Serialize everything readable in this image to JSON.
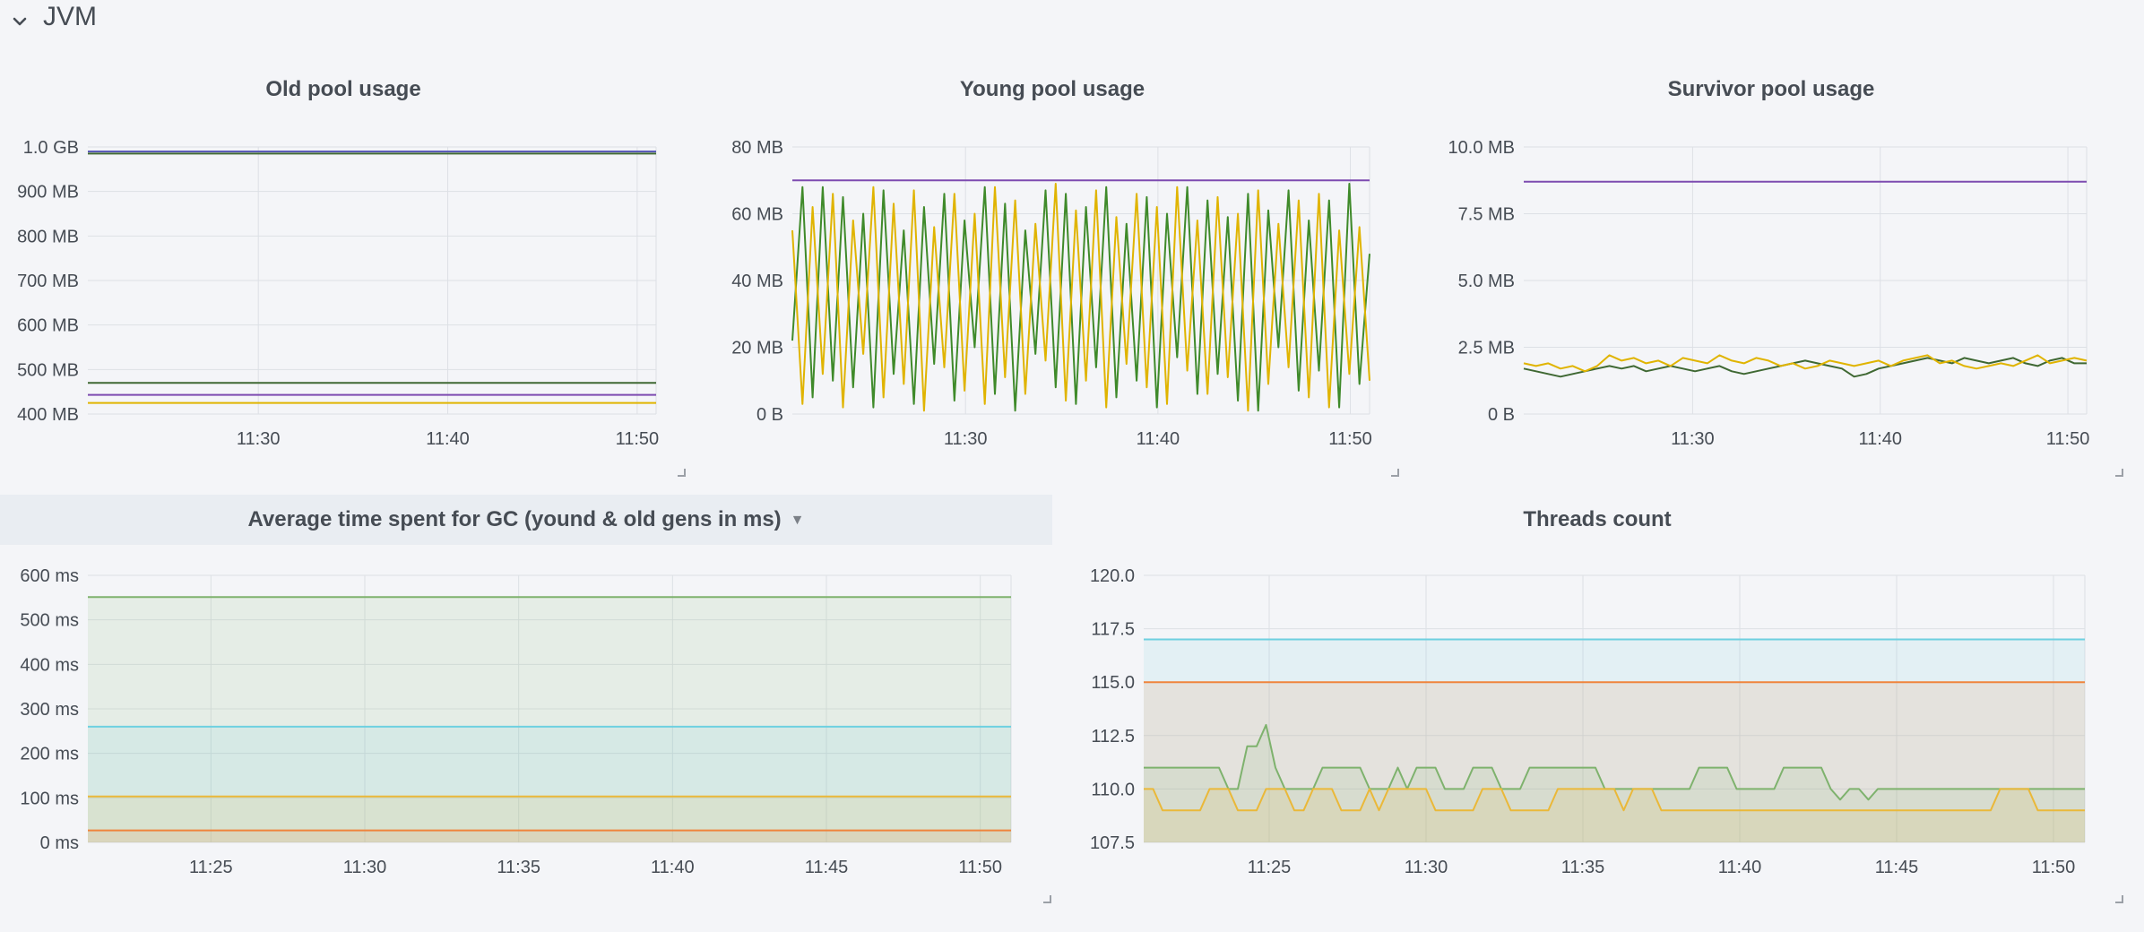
{
  "row": {
    "title": "JVM"
  },
  "panels": [
    {
      "id": "old",
      "title": "Old pool usage",
      "chart_data": {
        "type": "line",
        "title": "Old pool usage",
        "x_ticks": [
          "11:30",
          "11:40",
          "11:50"
        ],
        "y_ticks": [
          "1.0 GB",
          "900 MB",
          "800 MB",
          "700 MB",
          "600 MB",
          "500 MB",
          "400 MB"
        ],
        "ylim": [
          400,
          1000
        ],
        "y_unit": "MB",
        "x_range": [
          "11:21",
          "11:51"
        ],
        "grid": true,
        "series": [
          {
            "color": "#5b5bb8",
            "values": [
              990,
              990
            ]
          },
          {
            "color": "#3f6833",
            "values": [
              985,
              985
            ]
          },
          {
            "color": "#3f6833",
            "values": [
              470,
              470
            ]
          },
          {
            "color": "#7d4bb0",
            "values": [
              443,
              443
            ]
          },
          {
            "color": "#e0b400",
            "values": [
              425,
              425
            ]
          }
        ]
      }
    },
    {
      "id": "young",
      "title": "Young pool usage",
      "chart_data": {
        "type": "line",
        "title": "Young pool usage",
        "x_ticks": [
          "11:30",
          "11:40",
          "11:50"
        ],
        "y_ticks": [
          "80 MB",
          "60 MB",
          "40 MB",
          "20 MB",
          "0 B"
        ],
        "ylim": [
          0,
          80
        ],
        "y_unit": "MB",
        "x_range": [
          "11:21",
          "11:51"
        ],
        "grid": true,
        "series": [
          {
            "color": "#7d4bb0",
            "values": [
              70,
              70
            ]
          },
          {
            "color": "#3f8a2a",
            "values": [
              22,
              68,
              5,
              68,
              10,
              65,
              8,
              60,
              2,
              67,
              12,
              55,
              3,
              62,
              15,
              66,
              4,
              58,
              20,
              68,
              6,
              63,
              1,
              55,
              18,
              67,
              8,
              66,
              3,
              62,
              14,
              68,
              5,
              57,
              10,
              65,
              2,
              60,
              17,
              68,
              6,
              64,
              12,
              59,
              4,
              66,
              1,
              61,
              20,
              67,
              7,
              58,
              13,
              64,
              2,
              69,
              9,
              48
            ]
          },
          {
            "color": "#e0b400",
            "values": [
              55,
              3,
              62,
              12,
              66,
              2,
              58,
              18,
              68,
              5,
              63,
              9,
              67,
              1,
              56,
              14,
              66,
              7,
              60,
              3,
              68,
              11,
              64,
              6,
              57,
              16,
              69,
              4,
              61,
              10,
              67,
              2,
              59,
              15,
              66,
              8,
              62,
              3,
              68,
              13,
              58,
              6,
              65,
              11,
              60,
              1,
              67,
              9,
              57,
              14,
              64,
              5,
              66,
              2,
              55,
              12,
              56,
              10
            ]
          }
        ]
      }
    },
    {
      "id": "survivor",
      "title": "Survivor pool usage",
      "chart_data": {
        "type": "line",
        "title": "Survivor pool usage",
        "x_ticks": [
          "11:30",
          "11:40",
          "11:50"
        ],
        "y_ticks": [
          "10.0 MB",
          "7.5 MB",
          "5.0 MB",
          "2.5 MB",
          "0 B"
        ],
        "ylim": [
          0,
          10
        ],
        "y_unit": "MB",
        "x_range": [
          "11:21",
          "11:51"
        ],
        "grid": true,
        "series": [
          {
            "color": "#7d4bb0",
            "values": [
              8.7,
              8.7
            ]
          },
          {
            "color": "#3f6833",
            "values": [
              1.7,
              1.6,
              1.5,
              1.4,
              1.5,
              1.6,
              1.7,
              1.8,
              1.7,
              1.8,
              1.6,
              1.7,
              1.8,
              1.7,
              1.6,
              1.7,
              1.8,
              1.6,
              1.5,
              1.6,
              1.7,
              1.8,
              1.9,
              2.0,
              1.9,
              1.8,
              1.7,
              1.4,
              1.5,
              1.7,
              1.8,
              1.9,
              2.0,
              2.1,
              2.0,
              1.9,
              2.1,
              2.0,
              1.9,
              2.0,
              2.1,
              1.9,
              1.8,
              2.0,
              2.1,
              1.9,
              1.9
            ]
          },
          {
            "color": "#e0b400",
            "values": [
              1.9,
              1.8,
              1.9,
              1.7,
              1.8,
              1.6,
              1.8,
              2.2,
              2.0,
              2.1,
              1.9,
              2.0,
              1.8,
              2.1,
              2.0,
              1.9,
              2.2,
              2.0,
              1.9,
              2.1,
              2.0,
              1.8,
              1.9,
              1.7,
              1.8,
              2.0,
              1.9,
              1.8,
              1.9,
              2.0,
              1.8,
              2.0,
              2.1,
              2.2,
              1.9,
              2.0,
              1.8,
              1.7,
              1.8,
              1.9,
              1.8,
              2.0,
              2.2,
              1.9,
              2.0,
              2.1,
              2.0
            ]
          }
        ]
      }
    },
    {
      "id": "gc",
      "title": "Average time spent for GC (yound & old gens in ms)",
      "chart_data": {
        "type": "area",
        "title": "Average time spent for GC (yound & old gens in ms)",
        "x_ticks": [
          "11:25",
          "11:30",
          "11:35",
          "11:40",
          "11:45",
          "11:50"
        ],
        "y_ticks": [
          "600 ms",
          "500 ms",
          "400 ms",
          "300 ms",
          "200 ms",
          "100 ms",
          "0 ms"
        ],
        "ylim": [
          0,
          600
        ],
        "y_unit": "ms",
        "x_range": [
          "11:21",
          "11:51"
        ],
        "grid": true,
        "series": [
          {
            "color": "#7eb26d",
            "values": [
              551,
              551
            ]
          },
          {
            "color": "#6ed0e0",
            "values": [
              260,
              260
            ]
          },
          {
            "color": "#eab839",
            "values": [
              103,
              103
            ]
          },
          {
            "color": "#ef843c",
            "values": [
              27,
              27
            ]
          }
        ]
      }
    },
    {
      "id": "threads",
      "title": "Threads count",
      "chart_data": {
        "type": "area",
        "title": "Threads count",
        "x_ticks": [
          "11:25",
          "11:30",
          "11:35",
          "11:40",
          "11:45",
          "11:50"
        ],
        "y_ticks": [
          "120.0",
          "117.5",
          "115.0",
          "112.5",
          "110.0",
          "107.5"
        ],
        "ylim": [
          107.5,
          120
        ],
        "x_range": [
          "11:21",
          "11:51"
        ],
        "grid": true,
        "series": [
          {
            "color": "#6ed0e0",
            "values": [
              117,
              117
            ]
          },
          {
            "color": "#ef843c",
            "values": [
              115,
              115
            ]
          },
          {
            "color": "#7eb26d",
            "values": [
              111,
              111,
              111,
              111,
              111,
              111,
              111,
              111,
              111,
              110,
              110,
              112,
              112,
              113,
              111,
              110,
              110,
              110,
              110,
              111,
              111,
              111,
              111,
              111,
              110,
              110,
              110,
              111,
              110,
              111,
              111,
              111,
              110,
              110,
              110,
              111,
              111,
              111,
              110,
              110,
              110,
              111,
              111,
              111,
              111,
              111,
              111,
              111,
              111,
              110,
              110,
              110,
              110,
              110,
              110,
              110,
              110,
              110,
              110,
              111,
              111,
              111,
              111,
              110,
              110,
              110,
              110,
              110,
              111,
              111,
              111,
              111,
              111,
              110,
              109.5,
              110,
              110,
              109.5,
              110,
              110,
              110,
              110,
              110,
              110,
              110,
              110,
              110,
              110,
              110,
              110,
              110,
              110,
              110,
              110,
              110,
              110,
              110,
              110,
              110,
              110,
              110
            ]
          },
          {
            "color": "#eab839",
            "values": [
              110,
              110,
              109,
              109,
              109,
              109,
              109,
              110,
              110,
              110,
              109,
              109,
              109,
              110,
              110,
              110,
              109,
              109,
              110,
              110,
              110,
              109,
              109,
              109,
              110,
              109,
              110,
              110,
              110,
              110,
              110,
              109,
              109,
              109,
              109,
              109,
              110,
              110,
              110,
              109,
              109,
              109,
              109,
              109,
              110,
              110,
              110,
              110,
              110,
              110,
              110,
              109,
              110,
              110,
              110,
              109,
              109,
              109,
              109,
              109,
              109,
              109,
              109,
              109,
              109,
              109,
              109,
              109,
              109,
              109,
              109,
              109,
              109,
              109,
              109,
              109,
              109,
              109,
              109,
              109,
              109,
              109,
              109,
              109,
              109,
              109,
              109,
              109,
              109,
              109,
              109,
              110,
              110,
              110,
              110,
              109,
              109,
              109,
              109,
              109,
              109
            ]
          }
        ]
      }
    }
  ]
}
